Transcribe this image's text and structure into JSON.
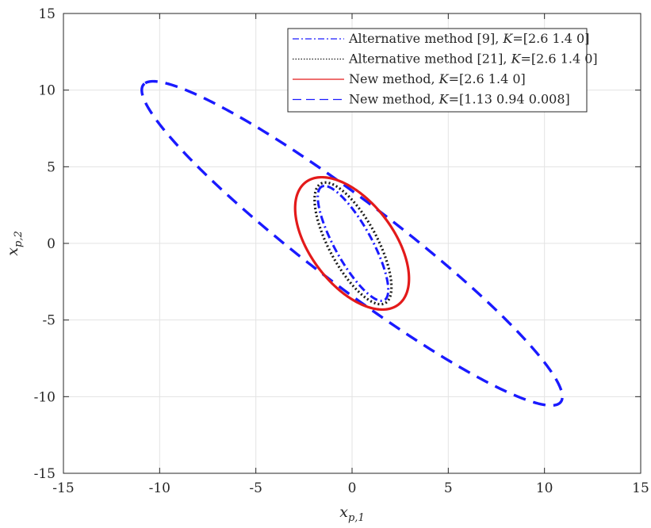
{
  "chart_data": {
    "type": "line",
    "title": "",
    "xlabel": {
      "base": "x",
      "sub": "p,1"
    },
    "ylabel": {
      "base": "x",
      "sub": "p,2"
    },
    "xlim": [
      -15,
      15
    ],
    "ylim": [
      -15,
      15
    ],
    "xticks": [
      -15,
      -10,
      -5,
      0,
      5,
      10,
      15
    ],
    "yticks": [
      -15,
      -10,
      -5,
      0,
      5,
      10,
      15
    ],
    "xtick_labels": [
      "-15",
      "-10",
      "-5",
      "0",
      "5",
      "10",
      "15"
    ],
    "ytick_labels": [
      "-15",
      "-10",
      "-5",
      "0",
      "5",
      "10",
      "15"
    ],
    "grid": true,
    "legend_position": "top-right",
    "series": [
      {
        "name": "Alternative method [9], K=[2.6 1.4 0]",
        "legend": {
          "prefix": "Alternative method [9], ",
          "k": "K",
          "suffix": "=[2.6 1.4 0]"
        },
        "style": "dashdot",
        "color": "#1a1aff",
        "ellipse": {
          "center": [
            0.05,
            0.0
          ],
          "semi_major": 4.05,
          "semi_minor": 1.0,
          "angle_deg": 113
        }
      },
      {
        "name": "Alternative method [21], K=[2.6 1.4 0]",
        "legend": {
          "prefix": "Alternative method [21], ",
          "k": "K",
          "suffix": "=[2.6 1.4 0]"
        },
        "style": "dotted",
        "color": "#1a1a1a",
        "ellipse": {
          "center": [
            0.05,
            0.0
          ],
          "semi_major": 4.25,
          "semi_minor": 1.3,
          "angle_deg": 112
        }
      },
      {
        "name": "New method, K=[2.6 1.4 0]",
        "legend": {
          "prefix": "New method, ",
          "k": "K",
          "suffix": "=[2.6 1.4 0]"
        },
        "style": "solid",
        "color": "#e31a1a",
        "ellipse": {
          "center": [
            0.0,
            0.0
          ],
          "semi_major": 4.7,
          "semi_minor": 2.3,
          "angle_deg": 117
        }
      },
      {
        "name": "New method, K=[1.13 0.94 0.008]",
        "legend": {
          "prefix": "New method, ",
          "k": "K",
          "suffix": "=[1.13 0.94 0.008]"
        },
        "style": "dashed",
        "color": "#1a1aff",
        "ellipse": {
          "center": [
            0.0,
            0.0
          ],
          "semi_major": 15.0,
          "semi_minor": 2.5,
          "angle_deg": 136
        }
      }
    ]
  }
}
